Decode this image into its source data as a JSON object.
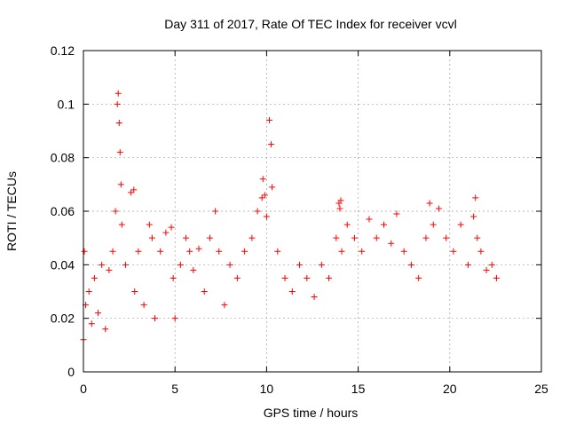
{
  "chart_data": {
    "type": "scatter",
    "title": "Day 311 of 2017, Rate Of TEC Index for receiver vcvl",
    "xlabel": "GPS time / hours",
    "ylabel": "ROTI / TECUs",
    "xlim": [
      0,
      25
    ],
    "ylim": [
      0,
      0.12
    ],
    "xticks": [
      0,
      5,
      10,
      15,
      20,
      25
    ],
    "xtick_labels": [
      "0",
      "5",
      "10",
      "15",
      "20",
      "25"
    ],
    "yticks": [
      0,
      0.02,
      0.04,
      0.06,
      0.08,
      0.1,
      0.12
    ],
    "ytick_labels": [
      "0",
      "0.02",
      "0.04",
      "0.06",
      "0.08",
      "0.1",
      "0.12"
    ],
    "grid": true,
    "marker": "+",
    "color": "#ff0000",
    "series": [
      {
        "name": "ROTI",
        "x": [
          0.0,
          0.05,
          0.12,
          0.3,
          0.45,
          0.6,
          0.8,
          1.0,
          1.2,
          1.4,
          1.6,
          1.75,
          1.85,
          1.9,
          1.95,
          2.0,
          2.05,
          2.1,
          2.3,
          2.6,
          2.75,
          2.8,
          3.0,
          3.3,
          3.6,
          3.75,
          3.9,
          4.2,
          4.5,
          4.8,
          4.9,
          5.0,
          5.3,
          5.6,
          5.8,
          6.0,
          6.3,
          6.6,
          6.9,
          7.2,
          7.4,
          7.7,
          8.0,
          8.4,
          8.8,
          9.2,
          9.5,
          9.75,
          9.8,
          9.9,
          10.0,
          10.15,
          10.25,
          10.3,
          10.6,
          11.0,
          11.4,
          11.8,
          12.2,
          12.6,
          13.0,
          13.4,
          13.8,
          13.95,
          14.0,
          14.05,
          14.1,
          14.4,
          14.8,
          15.2,
          15.6,
          16.0,
          16.4,
          16.8,
          17.1,
          17.5,
          17.9,
          18.3,
          18.7,
          18.9,
          19.1,
          19.4,
          19.8,
          20.2,
          20.6,
          21.0,
          21.3,
          21.4,
          21.5,
          21.7,
          22.0,
          22.3,
          22.55
        ],
        "y": [
          0.012,
          0.045,
          0.025,
          0.03,
          0.018,
          0.035,
          0.022,
          0.04,
          0.016,
          0.038,
          0.045,
          0.06,
          0.1,
          0.104,
          0.093,
          0.082,
          0.07,
          0.055,
          0.04,
          0.067,
          0.068,
          0.03,
          0.045,
          0.025,
          0.055,
          0.05,
          0.02,
          0.045,
          0.052,
          0.054,
          0.035,
          0.02,
          0.04,
          0.05,
          0.045,
          0.038,
          0.046,
          0.03,
          0.05,
          0.06,
          0.045,
          0.025,
          0.04,
          0.035,
          0.045,
          0.05,
          0.06,
          0.065,
          0.072,
          0.066,
          0.058,
          0.094,
          0.085,
          0.069,
          0.045,
          0.035,
          0.03,
          0.04,
          0.035,
          0.028,
          0.04,
          0.035,
          0.05,
          0.063,
          0.061,
          0.064,
          0.045,
          0.055,
          0.05,
          0.045,
          0.057,
          0.05,
          0.055,
          0.048,
          0.059,
          0.045,
          0.04,
          0.035,
          0.05,
          0.063,
          0.055,
          0.061,
          0.05,
          0.045,
          0.055,
          0.04,
          0.058,
          0.065,
          0.05,
          0.045,
          0.038,
          0.04,
          0.035
        ]
      }
    ]
  }
}
